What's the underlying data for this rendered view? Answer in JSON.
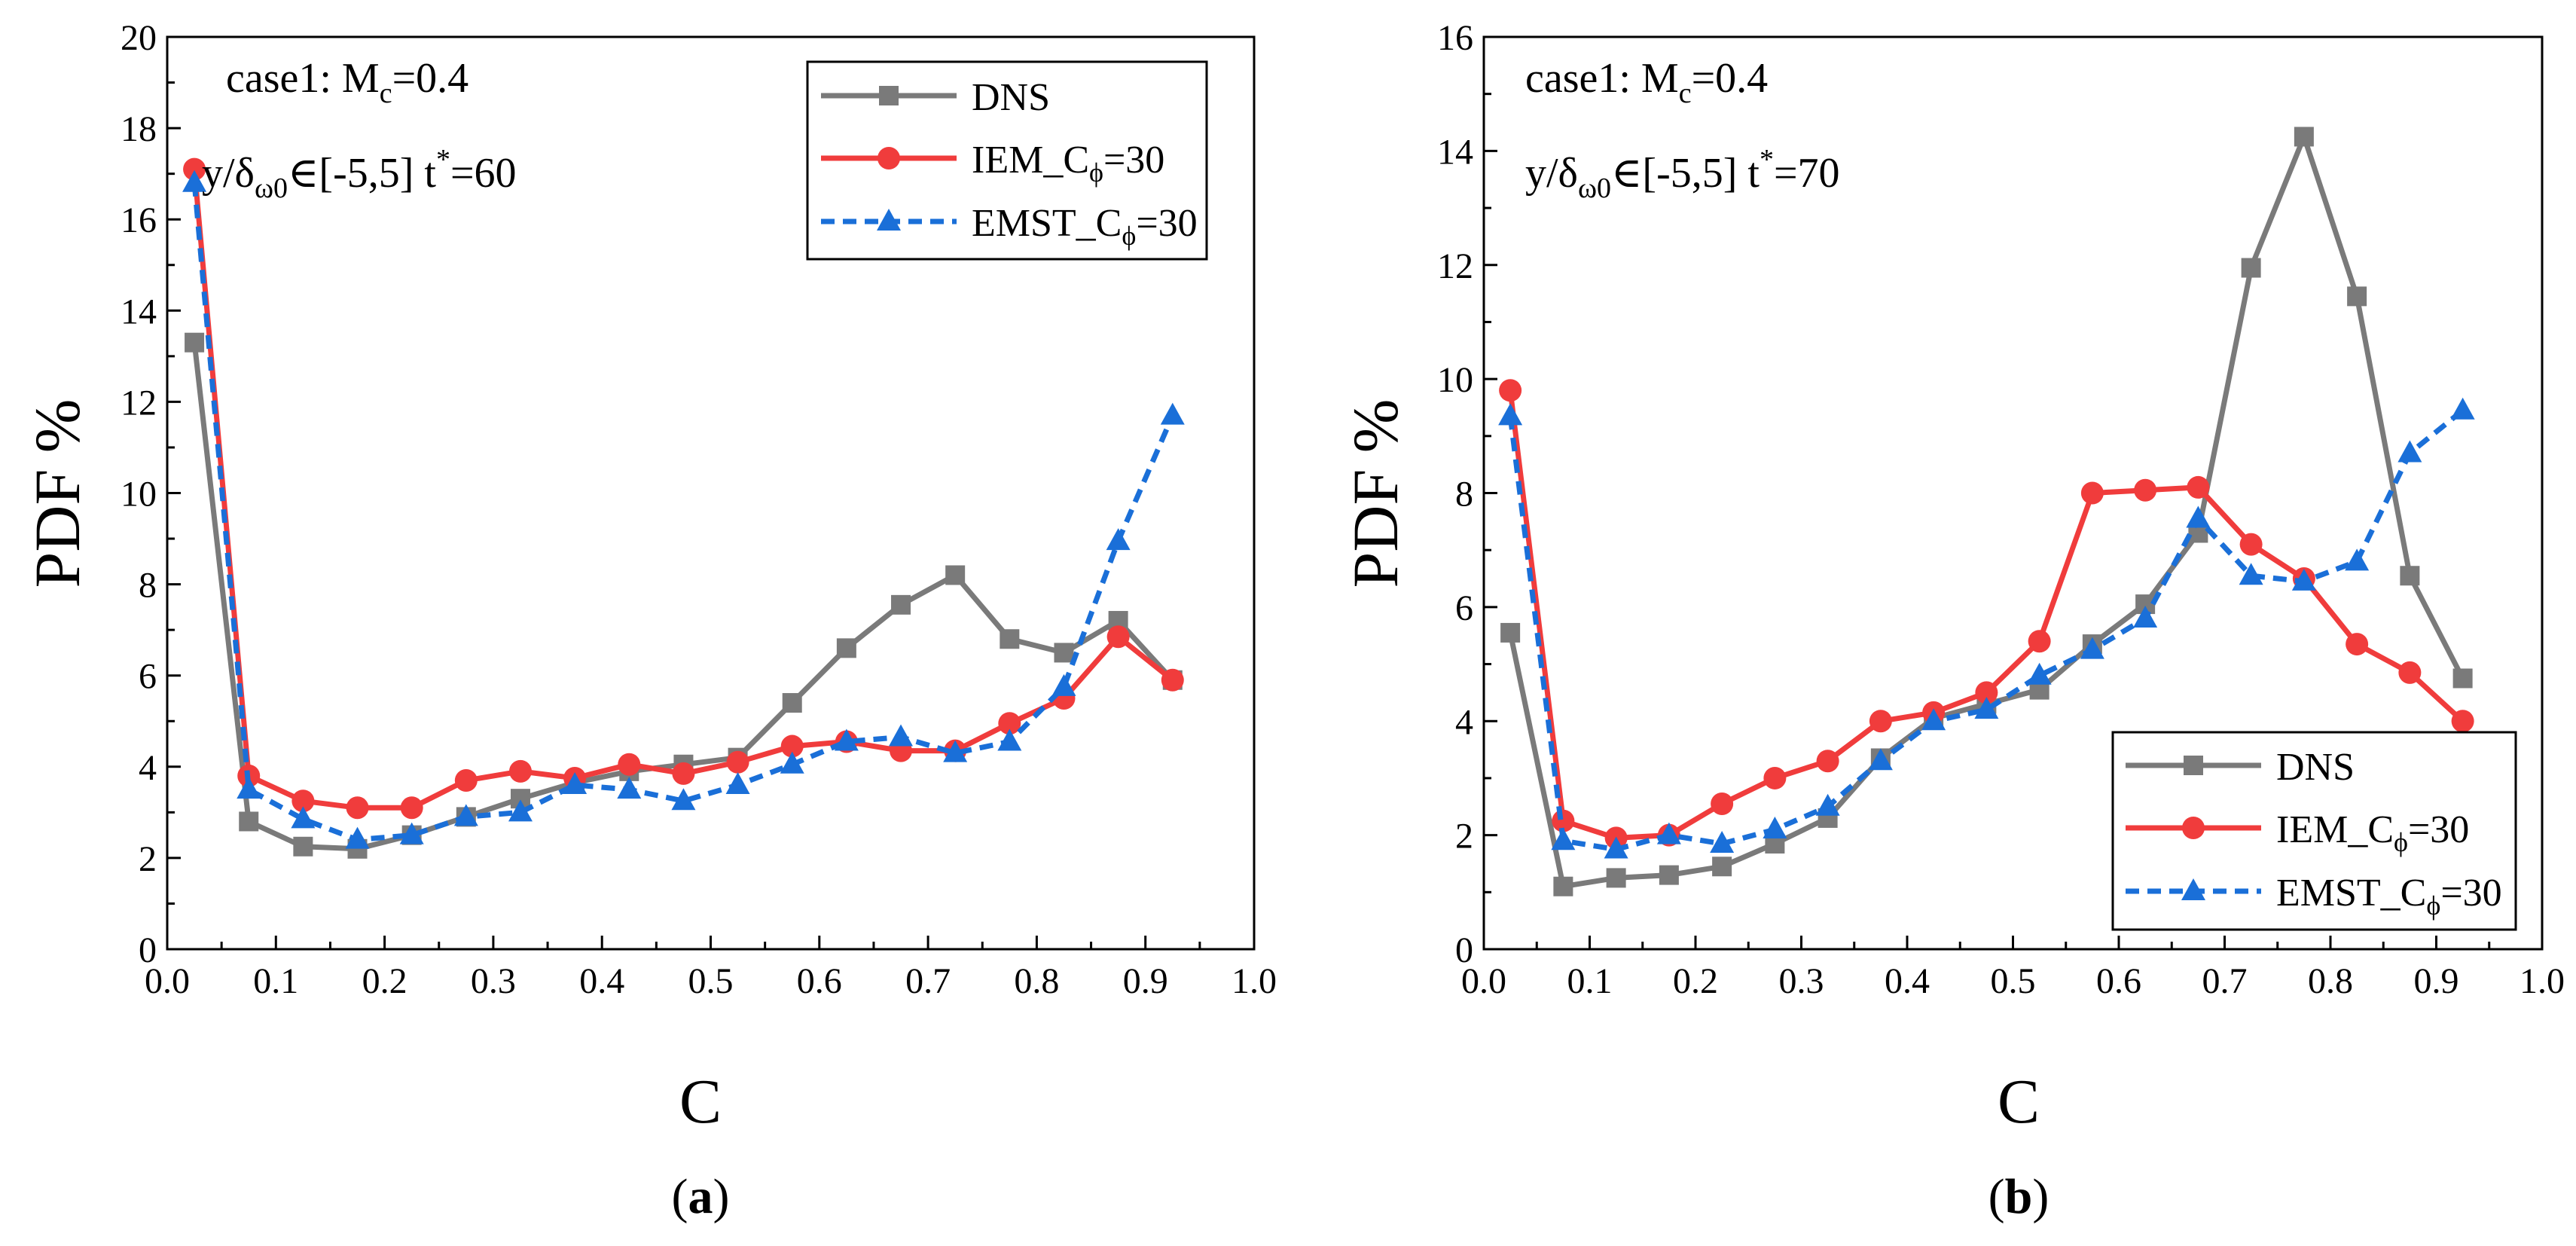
{
  "colors": {
    "dns": "#7a7a7a",
    "iem": "#f03c3c",
    "emst": "#1a6fd8",
    "axis": "#000000"
  },
  "legend_labels": {
    "dns": "DNS",
    "iem_main": "IEM_C",
    "iem_sub": "ϕ",
    "iem_tail": "=30",
    "emst_main": "EMST_C",
    "emst_sub": "ϕ",
    "emst_tail": "=30"
  },
  "chart_data": [
    {
      "type": "line",
      "panel_label": "a",
      "xlabel": "C",
      "ylabel": "PDF %",
      "xlim": [
        0.0,
        1.0
      ],
      "ylim": [
        0,
        20
      ],
      "xticks": [
        "0.0",
        "0.1",
        "0.2",
        "0.3",
        "0.4",
        "0.5",
        "0.6",
        "0.7",
        "0.8",
        "0.9",
        "1.0"
      ],
      "yticks": [
        "0",
        "2",
        "4",
        "6",
        "8",
        "10",
        "12",
        "14",
        "16",
        "18",
        "20"
      ],
      "annotation": {
        "line1_prefix": "case1: M",
        "line1_sub": "c",
        "line1_tail": "=0.4",
        "line2_prefix": "y/δ",
        "line2_sub": "ω0",
        "line2_mid": "∈[-5,5]  t",
        "line2_sup": "*",
        "line2_tail": "=60"
      },
      "legend_position": "top-right",
      "x": [
        0.025,
        0.075,
        0.125,
        0.175,
        0.225,
        0.275,
        0.325,
        0.375,
        0.425,
        0.475,
        0.525,
        0.575,
        0.625,
        0.675,
        0.725,
        0.775,
        0.825,
        0.875,
        0.925
      ],
      "series": [
        {
          "name": "DNS",
          "key": "dns",
          "marker": "square",
          "dash": "solid",
          "values": [
            13.3,
            2.8,
            2.25,
            2.2,
            2.5,
            2.9,
            3.3,
            3.65,
            3.9,
            4.05,
            4.2,
            5.4,
            6.6,
            7.55,
            8.2,
            6.8,
            6.5,
            7.2,
            5.9
          ]
        },
        {
          "name": "IEM_Cϕ=30",
          "key": "iem",
          "marker": "circle",
          "dash": "solid",
          "values": [
            17.1,
            3.8,
            3.25,
            3.1,
            3.1,
            3.7,
            3.9,
            3.75,
            4.05,
            3.85,
            4.1,
            4.45,
            4.55,
            4.35,
            4.35,
            4.95,
            5.5,
            6.85,
            5.9
          ]
        },
        {
          "name": "EMST_Cϕ=30",
          "key": "emst",
          "marker": "triangle",
          "dash": "dashed",
          "values": [
            16.8,
            3.5,
            2.85,
            2.4,
            2.5,
            2.9,
            3.0,
            3.6,
            3.5,
            3.25,
            3.6,
            4.05,
            4.55,
            4.65,
            4.3,
            4.55,
            5.75,
            8.95,
            11.7
          ]
        }
      ]
    },
    {
      "type": "line",
      "panel_label": "b",
      "xlabel": "C",
      "ylabel": "PDF %",
      "xlim": [
        0.0,
        1.0
      ],
      "ylim": [
        0,
        16
      ],
      "xticks": [
        "0.0",
        "0.1",
        "0.2",
        "0.3",
        "0.4",
        "0.5",
        "0.6",
        "0.7",
        "0.8",
        "0.9",
        "1.0"
      ],
      "yticks": [
        "0",
        "2",
        "4",
        "6",
        "8",
        "10",
        "12",
        "14",
        "16"
      ],
      "annotation": {
        "line1_prefix": "case1: M",
        "line1_sub": "c",
        "line1_tail": "=0.4",
        "line2_prefix": "y/δ",
        "line2_sub": "ω0",
        "line2_mid": "∈[-5,5]  t",
        "line2_sup": "*",
        "line2_tail": "=70"
      },
      "legend_position": "bottom-right",
      "x": [
        0.025,
        0.075,
        0.125,
        0.175,
        0.225,
        0.275,
        0.325,
        0.375,
        0.425,
        0.475,
        0.525,
        0.575,
        0.625,
        0.675,
        0.725,
        0.775,
        0.825,
        0.875,
        0.925
      ],
      "series": [
        {
          "name": "DNS",
          "key": "dns",
          "marker": "square",
          "dash": "solid",
          "values": [
            5.55,
            1.1,
            1.25,
            1.3,
            1.45,
            1.85,
            2.3,
            3.35,
            4.05,
            4.3,
            4.55,
            5.35,
            6.05,
            7.3,
            11.95,
            14.25,
            11.45,
            6.55,
            4.75
          ]
        },
        {
          "name": "IEM_Cϕ=30",
          "key": "iem",
          "marker": "circle",
          "dash": "solid",
          "values": [
            9.8,
            2.25,
            1.95,
            2.0,
            2.55,
            3.0,
            3.3,
            4.0,
            4.15,
            4.5,
            5.4,
            8.0,
            8.05,
            8.1,
            7.1,
            6.5,
            5.35,
            4.85,
            4.0
          ]
        },
        {
          "name": "EMST_Cϕ=30",
          "key": "emst",
          "marker": "triangle",
          "dash": "dashed",
          "values": [
            9.35,
            1.9,
            1.75,
            2.0,
            1.85,
            2.1,
            2.5,
            3.3,
            4.0,
            4.2,
            4.8,
            5.25,
            5.8,
            7.55,
            6.55,
            6.45,
            6.8,
            8.7,
            9.45
          ]
        }
      ]
    }
  ]
}
